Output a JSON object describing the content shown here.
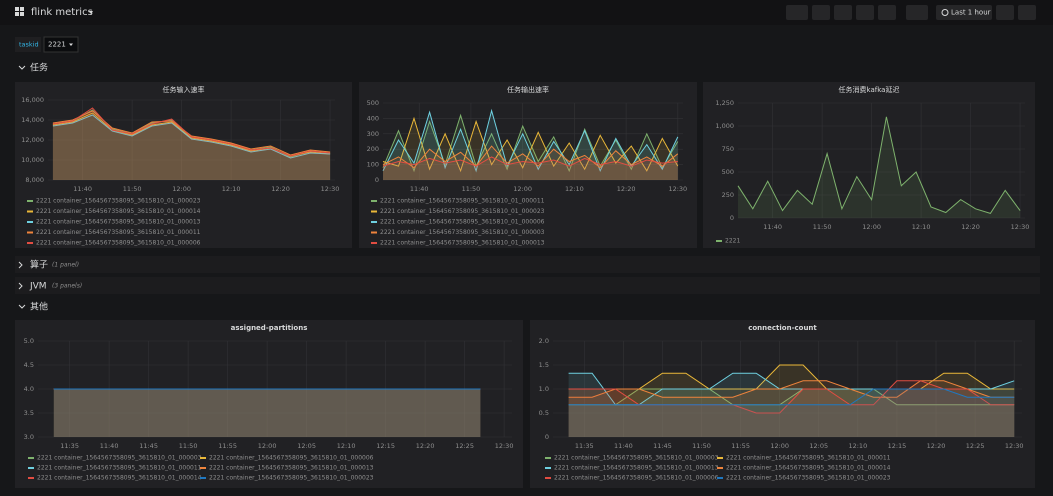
{
  "header": {
    "title": "flink metrics",
    "time_range": "Last 1 hour"
  },
  "variables": {
    "label": "taskid",
    "value": "2221"
  },
  "rows": [
    {
      "title": "任务"
    },
    {
      "title": "算子",
      "note": "(1 panel)"
    },
    {
      "title": "JVM",
      "note": "(3 panels)"
    },
    {
      "title": "其他"
    }
  ],
  "chart_data": [
    {
      "type": "line",
      "title": "任务输入速率",
      "fill": true,
      "x": [
        "11:34",
        "11:38",
        "11:42",
        "11:46",
        "11:50",
        "11:54",
        "11:58",
        "12:02",
        "12:06",
        "12:10",
        "12:14",
        "12:18",
        "12:22",
        "12:26",
        "12:30"
      ],
      "xlim": [
        "11:33",
        "12:31"
      ],
      "xticks": [
        "11:40",
        "11:50",
        "12:00",
        "12:10",
        "12:20",
        "12:30"
      ],
      "ylim": [
        8000,
        16000
      ],
      "yticks": [
        {
          "value": 8000,
          "label": "8,000"
        },
        {
          "value": 10000,
          "label": "10,000"
        },
        {
          "value": 12000,
          "label": "12,000"
        },
        {
          "value": 14000,
          "label": "14,000"
        },
        {
          "value": 16000,
          "label": "16,000"
        }
      ],
      "series": [
        {
          "name": "2221 container_1564567358095_3615810_01_000023",
          "color": "#7eb26d",
          "values": [
            13600,
            13900,
            15000,
            13100,
            12600,
            13700,
            14000,
            12300,
            12000,
            11600,
            11000,
            11300,
            10300,
            10900,
            10700
          ]
        },
        {
          "name": "2221 container_1564567358095_3615810_01_000014",
          "color": "#eab839",
          "values": [
            13500,
            13800,
            14700,
            13000,
            12500,
            13500,
            13800,
            12200,
            11900,
            11500,
            10900,
            11200,
            10400,
            10800,
            10600
          ]
        },
        {
          "name": "2221 container_1564567358095_3615810_01_000013",
          "color": "#6ed0e0",
          "values": [
            13400,
            13700,
            14500,
            12900,
            12400,
            13400,
            13700,
            12100,
            11800,
            11400,
            10800,
            11100,
            10200,
            10700,
            10600
          ]
        },
        {
          "name": "2221 container_1564567358095_3615810_01_000011",
          "color": "#ef843c",
          "values": [
            13700,
            14000,
            14900,
            13200,
            12700,
            13800,
            13900,
            12400,
            12100,
            11700,
            11100,
            11400,
            10500,
            11000,
            10800
          ]
        },
        {
          "name": "2221 container_1564567358095_3615810_01_000006",
          "color": "#e24d42",
          "values": [
            13600,
            13900,
            15200,
            13000,
            12600,
            13600,
            14100,
            12300,
            12000,
            11600,
            11000,
            11200,
            10400,
            10900,
            10700
          ]
        }
      ]
    },
    {
      "type": "line",
      "title": "任务输出速率",
      "fill": true,
      "x": [
        "11:33",
        "11:36",
        "11:39",
        "11:42",
        "11:45",
        "11:48",
        "11:51",
        "11:54",
        "11:57",
        "12:00",
        "12:03",
        "12:06",
        "12:09",
        "12:12",
        "12:15",
        "12:18",
        "12:21",
        "12:24",
        "12:27",
        "12:30"
      ],
      "xlim": [
        "11:33",
        "12:31"
      ],
      "xticks": [
        "11:40",
        "11:50",
        "12:00",
        "12:10",
        "12:20",
        "12:30"
      ],
      "ylim": [
        0,
        500
      ],
      "yticks": [
        0,
        100,
        200,
        300,
        400,
        500
      ],
      "series": [
        {
          "name": "2221 container_1564567358095_3615810_01_000011",
          "color": "#7eb26d",
          "values": [
            80,
            320,
            60,
            380,
            100,
            420,
            90,
            300,
            70,
            350,
            120,
            280,
            60,
            330,
            90,
            260,
            70,
            300,
            80,
            250
          ]
        },
        {
          "name": "2221 container_1564567358095_3615810_01_000023",
          "color": "#eab839",
          "values": [
            120,
            90,
            400,
            70,
            300,
            60,
            380,
            100,
            260,
            80,
            310,
            90,
            240,
            70,
            290,
            110,
            220,
            60,
            270,
            90
          ]
        },
        {
          "name": "2221 container_1564567358095_3615810_01_000006",
          "color": "#6ed0e0",
          "values": [
            60,
            260,
            110,
            440,
            80,
            330,
            60,
            450,
            90,
            300,
            70,
            250,
            100,
            320,
            60,
            270,
            90,
            230,
            70,
            280
          ]
        },
        {
          "name": "2221 container_1564567358095_3615810_01_000003",
          "color": "#ef843c",
          "values": [
            100,
            150,
            80,
            200,
            120,
            180,
            90,
            220,
            110,
            170,
            90,
            200,
            120,
            160,
            80,
            190,
            100,
            150,
            90,
            170
          ]
        },
        {
          "name": "2221 container_1564567358095_3615810_01_000013",
          "color": "#e24d42",
          "values": [
            90,
            120,
            100,
            140,
            110,
            130,
            90,
            150,
            100,
            120,
            110,
            130,
            90,
            140,
            100,
            120,
            90,
            130,
            110,
            120
          ]
        }
      ]
    },
    {
      "type": "line",
      "title": "任务消费kafka延迟",
      "fill": true,
      "x": [
        "11:33",
        "11:36",
        "11:39",
        "11:42",
        "11:45",
        "11:48",
        "11:51",
        "11:54",
        "11:57",
        "12:00",
        "12:03",
        "12:06",
        "12:09",
        "12:12",
        "12:15",
        "12:18",
        "12:21",
        "12:24",
        "12:27",
        "12:30"
      ],
      "xlim": [
        "11:33",
        "12:31"
      ],
      "xticks": [
        "11:40",
        "11:50",
        "12:00",
        "12:10",
        "12:20",
        "12:30"
      ],
      "ylim": [
        0,
        1250
      ],
      "yticks": [
        0,
        250,
        500,
        750,
        {
          "value": 1000,
          "label": "1,000"
        },
        {
          "value": 1250,
          "label": "1,250"
        }
      ],
      "series": [
        {
          "name": "2221",
          "color": "#7eb26d",
          "values": [
            350,
            100,
            400,
            80,
            300,
            150,
            700,
            100,
            450,
            200,
            1100,
            350,
            500,
            120,
            60,
            200,
            100,
            50,
            300,
            80
          ]
        }
      ]
    },
    {
      "type": "line",
      "title": "assigned-partitions",
      "fill": true,
      "x": [
        "11:33",
        "11:39",
        "11:45",
        "11:51",
        "11:57",
        "12:03",
        "12:09",
        "12:15",
        "12:21",
        "12:27"
      ],
      "xlim": [
        "11:31",
        "12:31"
      ],
      "xticks": [
        "11:35",
        "11:40",
        "11:45",
        "11:50",
        "11:55",
        "12:00",
        "12:05",
        "12:10",
        "12:15",
        "12:20",
        "12:25",
        "12:30"
      ],
      "ylim": [
        3,
        5
      ],
      "yticks": [
        {
          "value": 3,
          "label": "3.0"
        },
        {
          "value": 3.5,
          "label": "3.5"
        },
        {
          "value": 4,
          "label": "4.0"
        },
        {
          "value": 4.5,
          "label": "4.5"
        },
        {
          "value": 5,
          "label": "5.0"
        }
      ],
      "series": [
        {
          "name": "2221 container_1564567358095_3615810_01_000003",
          "color": "#7eb26d",
          "values": [
            4,
            4,
            4,
            4,
            4,
            4,
            4,
            4,
            4,
            4
          ]
        },
        {
          "name": "2221 container_1564567358095_3615810_01_000006",
          "color": "#eab839",
          "values": [
            4,
            4,
            4,
            4,
            4,
            4,
            4,
            4,
            4,
            4
          ]
        },
        {
          "name": "2221 container_1564567358095_3615810_01_000011",
          "color": "#6ed0e0",
          "values": [
            4,
            4,
            4,
            4,
            4,
            4,
            4,
            4,
            4,
            4
          ]
        },
        {
          "name": "2221 container_1564567358095_3615810_01_000013",
          "color": "#ef843c",
          "values": [
            4,
            4,
            4,
            4,
            4,
            4,
            4,
            4,
            4,
            4
          ]
        },
        {
          "name": "2221 container_1564567358095_3615810_01_000014",
          "color": "#e24d42",
          "values": [
            4,
            4,
            4,
            4,
            4,
            4,
            4,
            4,
            4,
            4
          ]
        },
        {
          "name": "2221 container_1564567358095_3615810_01_000023",
          "color": "#1f78c1",
          "values": [
            4,
            4,
            4,
            4,
            4,
            4,
            4,
            4,
            4,
            4
          ]
        }
      ]
    },
    {
      "type": "line",
      "title": "connection-count",
      "fill": true,
      "x": [
        "11:33",
        "11:36",
        "11:39",
        "11:42",
        "11:45",
        "11:48",
        "11:51",
        "11:54",
        "11:57",
        "12:00",
        "12:03",
        "12:06",
        "12:09",
        "12:12",
        "12:15",
        "12:18",
        "12:21",
        "12:24",
        "12:27",
        "12:30"
      ],
      "xlim": [
        "11:31",
        "12:31"
      ],
      "xticks": [
        "11:35",
        "11:40",
        "11:45",
        "11:50",
        "11:55",
        "12:00",
        "12:05",
        "12:10",
        "12:15",
        "12:20",
        "12:25",
        "12:30"
      ],
      "ylim": [
        0,
        2
      ],
      "yticks": [
        0,
        0.5,
        {
          "value": 1,
          "label": "1.0"
        },
        1.5,
        {
          "value": 2,
          "label": "2.0"
        }
      ],
      "series": [
        {
          "name": "2221 container_1564567358095_3615810_01_000003",
          "color": "#7eb26d",
          "values": [
            0.67,
            0.67,
            0.67,
            1,
            1,
            1,
            1,
            0.67,
            0.67,
            0.67,
            1,
            1,
            1,
            1,
            0.67,
            0.67,
            0.67,
            0.67,
            0.67,
            0.67
          ]
        },
        {
          "name": "2221 container_1564567358095_3615810_01_000011",
          "color": "#eab839",
          "values": [
            1,
            1,
            1,
            1,
            1.33,
            1.33,
            1,
            1,
            1,
            1.5,
            1.5,
            1,
            1,
            1,
            1,
            1,
            1.33,
            1.33,
            1,
            1
          ]
        },
        {
          "name": "2221 container_1564567358095_3615810_01_000013",
          "color": "#6ed0e0",
          "values": [
            1.33,
            1.33,
            0.67,
            0.67,
            1,
            1,
            1,
            1.33,
            1.33,
            1,
            1,
            1,
            1,
            1,
            1,
            1,
            1,
            1,
            1,
            1.17
          ]
        },
        {
          "name": "2221 container_1564567358095_3615810_01_000014",
          "color": "#ef843c",
          "values": [
            0.83,
            0.83,
            1,
            1,
            0.83,
            0.83,
            0.83,
            0.83,
            1,
            1,
            1.17,
            1.17,
            1,
            0.83,
            0.83,
            1.17,
            1.17,
            1,
            0.83,
            0.83
          ]
        },
        {
          "name": "2221 container_1564567358095_3615810_01_000006",
          "color": "#e24d42",
          "values": [
            1,
            1,
            1,
            0.67,
            0.67,
            0.67,
            0.67,
            0.67,
            0.5,
            0.5,
            1,
            1,
            0.67,
            0.67,
            1.17,
            1.17,
            1,
            1,
            0.67,
            0.67
          ]
        },
        {
          "name": "2221 container_1564567358095_3615810_01_000023",
          "color": "#1f78c1",
          "values": [
            0.67,
            0.67,
            0.67,
            0.67,
            0.67,
            0.67,
            0.67,
            0.67,
            0.67,
            0.67,
            0.67,
            0.67,
            0.67,
            1,
            1,
            1,
            1,
            0.83,
            0.83,
            0.83
          ]
        }
      ]
    }
  ]
}
